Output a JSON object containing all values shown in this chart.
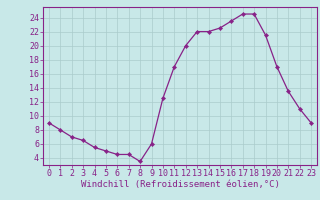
{
  "x": [
    0,
    1,
    2,
    3,
    4,
    5,
    6,
    7,
    8,
    9,
    10,
    11,
    12,
    13,
    14,
    15,
    16,
    17,
    18,
    19,
    20,
    21,
    22,
    23
  ],
  "y": [
    9,
    8,
    7,
    6.5,
    5.5,
    5,
    4.5,
    4.5,
    3.5,
    6,
    12.5,
    17,
    20,
    22,
    22,
    22.5,
    23.5,
    24.5,
    24.5,
    21.5,
    17,
    13.5,
    11,
    9
  ],
  "line_color": "#882288",
  "marker_color": "#882288",
  "bg_color": "#c8e8e8",
  "grid_color": "#aacccc",
  "axis_color": "#882288",
  "xlabel": "Windchill (Refroidissement éolien,°C)",
  "xlabel_fontsize": 6.5,
  "tick_fontsize": 6,
  "ylim": [
    3.0,
    25.5
  ],
  "yticks": [
    4,
    6,
    8,
    10,
    12,
    14,
    16,
    18,
    20,
    22,
    24
  ],
  "xticks": [
    0,
    1,
    2,
    3,
    4,
    5,
    6,
    7,
    8,
    9,
    10,
    11,
    12,
    13,
    14,
    15,
    16,
    17,
    18,
    19,
    20,
    21,
    22,
    23
  ],
  "xlim": [
    -0.5,
    23.5
  ]
}
